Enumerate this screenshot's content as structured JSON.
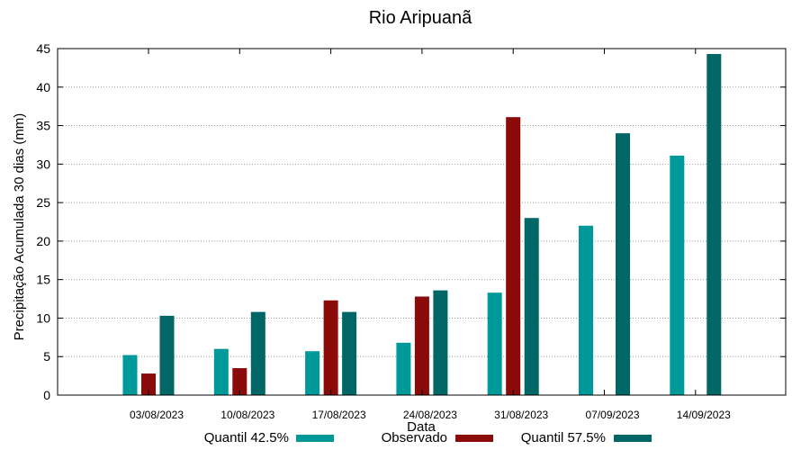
{
  "chart_data": {
    "type": "bar",
    "title": "Rio Aripuanã",
    "xlabel": "Data",
    "ylabel": "Precipitação Acumulada 30 dias (mm)",
    "ylim": [
      0,
      45
    ],
    "yticks": [
      0,
      5,
      10,
      15,
      20,
      25,
      30,
      35,
      40,
      45
    ],
    "grid": true,
    "legend_position": "bottom",
    "categories": [
      "03/08/2023",
      "10/08/2023",
      "17/08/2023",
      "24/08/2023",
      "31/08/2023",
      "07/09/2023",
      "14/09/2023"
    ],
    "series": [
      {
        "name": "Quantil 42.5%",
        "color": "#009999",
        "values": [
          5.2,
          6.0,
          5.7,
          6.8,
          13.3,
          22.0,
          31.1
        ]
      },
      {
        "name": "Observado",
        "color": "#8b0b0b",
        "values": [
          2.8,
          3.5,
          12.3,
          12.8,
          36.1,
          null,
          null
        ]
      },
      {
        "name": "Quantil 57.5%",
        "color": "#006666",
        "values": [
          10.3,
          10.8,
          10.8,
          13.6,
          23.0,
          34.0,
          44.3
        ]
      }
    ]
  }
}
